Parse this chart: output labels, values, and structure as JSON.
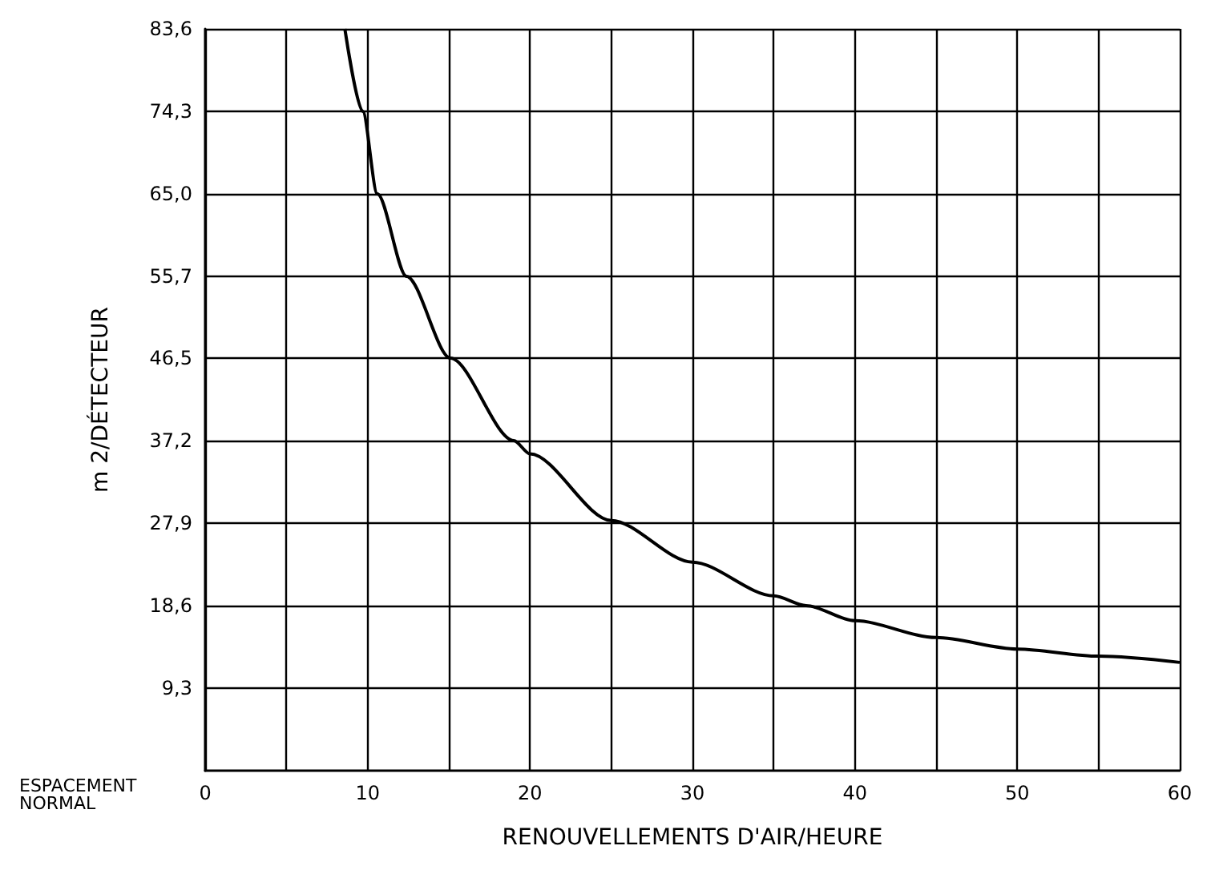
{
  "chart_data": {
    "type": "line",
    "xlabel": "RENOUVELLEMENTS D'AIR/HEURE",
    "ylabel": "m 2/DÉTECTEUR",
    "annotations": [
      "ESPACEMENT NORMAL"
    ],
    "series": [
      {
        "color": "#000000",
        "x": [
          8.6,
          9.7,
          10.6,
          12.4,
          15.1,
          19,
          20,
          25,
          30,
          35,
          37,
          40,
          45,
          50,
          55,
          60
        ],
        "values": [
          83.6,
          74.3,
          65,
          55.7,
          46.5,
          37.2,
          35.7,
          28.2,
          23.5,
          19.7,
          18.6,
          16.9,
          15,
          13.7,
          12.9,
          12.2
        ]
      }
    ],
    "xlim": [
      0,
      60
    ],
    "xticks": [
      0,
      {
        "value": 5,
        "label": null
      },
      10,
      {
        "value": 15,
        "label": null
      },
      20,
      {
        "value": 25,
        "label": null
      },
      30,
      {
        "value": 35,
        "label": null
      },
      40,
      {
        "value": 45,
        "label": null
      },
      50,
      {
        "value": 55,
        "label": null
      },
      60
    ],
    "ylim": [
      0,
      83.6
    ],
    "yticks": [
      {
        "value": 9.3,
        "label": "9,3"
      },
      {
        "value": 18.6,
        "label": "18,6"
      },
      {
        "value": 27.9,
        "label": "27,9"
      },
      {
        "value": 37.2,
        "label": "37,2"
      },
      {
        "value": 46.5,
        "label": "46,5"
      },
      {
        "value": 55.7,
        "label": "55,7"
      },
      {
        "value": 65,
        "label": "65,0"
      },
      {
        "value": 74.3,
        "label": "74,3"
      },
      {
        "value": 83.6,
        "label": "83,6"
      }
    ],
    "grid": true,
    "marker": "none",
    "line_style": "solid"
  }
}
